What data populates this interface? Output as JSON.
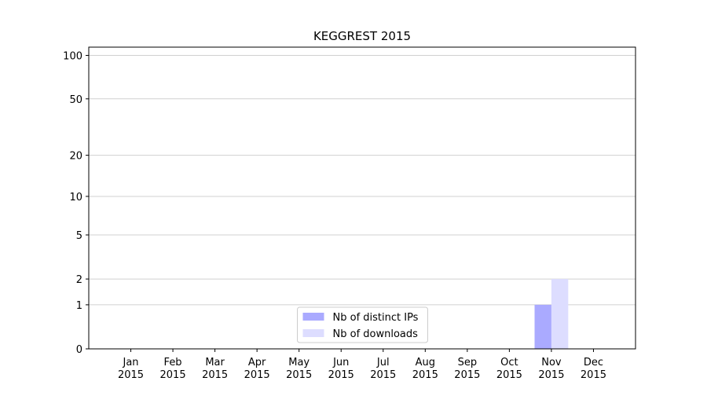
{
  "chart_data": {
    "type": "bar",
    "title": "KEGGREST 2015",
    "categories": [
      "Jan 2015",
      "Feb 2015",
      "Mar 2015",
      "Apr 2015",
      "May 2015",
      "Jun 2015",
      "Jul 2015",
      "Aug 2015",
      "Sep 2015",
      "Oct 2015",
      "Nov 2015",
      "Dec 2015"
    ],
    "series": [
      {
        "name": "Nb of distinct IPs",
        "color": "#aaaaff",
        "values": [
          0,
          0,
          0,
          0,
          0,
          0,
          0,
          0,
          0,
          0,
          1,
          0
        ]
      },
      {
        "name": "Nb of downloads",
        "color": "#ddddff",
        "values": [
          0,
          0,
          0,
          0,
          0,
          0,
          0,
          0,
          0,
          0,
          2,
          0
        ]
      }
    ],
    "yscale": "log1p",
    "ylim": [
      0,
      114
    ],
    "yticks": [
      0,
      1,
      2,
      5,
      10,
      20,
      50,
      100
    ],
    "grid": true,
    "legend": "lower center"
  }
}
